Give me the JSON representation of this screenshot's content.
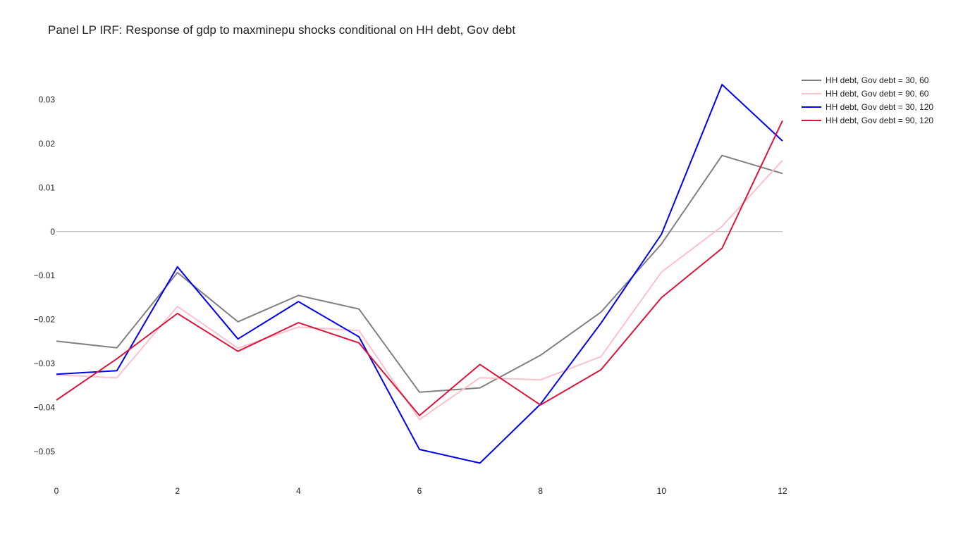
{
  "chart_data": {
    "type": "line",
    "title": "Panel LP IRF: Response of gdp to maxminepu shocks conditional on HH debt, Gov debt",
    "xlabel": "",
    "ylabel": "",
    "x": [
      0,
      1,
      2,
      3,
      4,
      5,
      6,
      7,
      8,
      9,
      10,
      11,
      12
    ],
    "xlim": [
      0,
      12
    ],
    "ylim": [
      -0.0575,
      0.0395
    ],
    "xticks": [
      0,
      2,
      4,
      6,
      8,
      10,
      12
    ],
    "xtick_labels": [
      "0",
      "2",
      "4",
      "6",
      "8",
      "10",
      "12"
    ],
    "yticks": [
      -0.05,
      -0.04,
      -0.03,
      -0.02,
      -0.01,
      0,
      0.01,
      0.02,
      0.03
    ],
    "ytick_labels": [
      "−0.05",
      "−0.04",
      "−0.03",
      "−0.02",
      "−0.01",
      "0",
      "0.01",
      "0.02",
      "0.03"
    ],
    "grid": false,
    "zero_line": true,
    "legend_position": "top-right",
    "series": [
      {
        "name": "HH debt, Gov debt = 30, 60",
        "color": "#808080",
        "values": [
          -0.0249,
          -0.0264,
          -0.0093,
          -0.0205,
          -0.0145,
          -0.0176,
          -0.0365,
          -0.0355,
          -0.0281,
          -0.0183,
          -0.0028,
          0.0173,
          0.0132
        ]
      },
      {
        "name": "HH debt, Gov debt = 90, 60",
        "color": "#ffc0cb",
        "values": [
          -0.0326,
          -0.0332,
          -0.017,
          -0.0265,
          -0.0217,
          -0.0225,
          -0.0427,
          -0.0332,
          -0.0337,
          -0.0284,
          -0.0092,
          0.0012,
          0.0162
        ]
      },
      {
        "name": "HH debt, Gov debt = 30, 120",
        "color": "#0000ee",
        "values": [
          -0.0324,
          -0.0316,
          -0.008,
          -0.0244,
          -0.0159,
          -0.0239,
          -0.0495,
          -0.0526,
          -0.0392,
          -0.0208,
          -0.0006,
          0.0334,
          0.0206
        ]
      },
      {
        "name": "HH debt, Gov debt = 90, 120",
        "color": "#dc143c",
        "values": [
          -0.0383,
          -0.0289,
          -0.0186,
          -0.0272,
          -0.0207,
          -0.0253,
          -0.0418,
          -0.0302,
          -0.0394,
          -0.0314,
          -0.015,
          -0.0038,
          0.0252
        ]
      }
    ]
  }
}
